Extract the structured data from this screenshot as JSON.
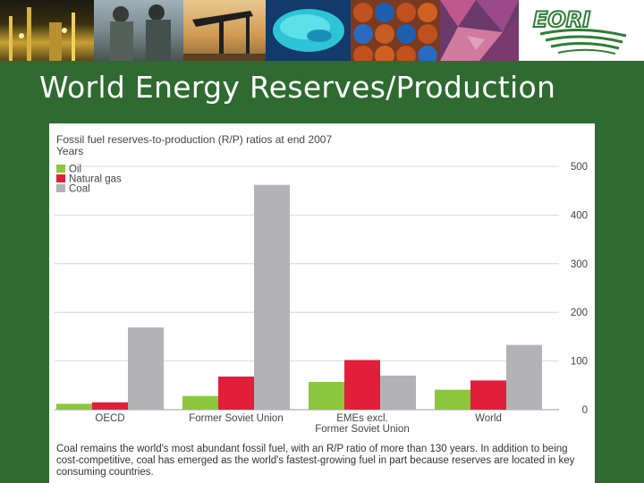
{
  "header": {
    "logo_alt": "EORI logo",
    "colors": {
      "slide_bg": "#2f6a31",
      "logo_green": "#2e7d34"
    }
  },
  "title": "World Energy Reserves/Production",
  "chart_data": {
    "type": "bar",
    "title": "Fossil fuel reserves-to-production (R/P) ratios at end 2007",
    "ylabel": "Years",
    "xlabel": "",
    "ylim": [
      0,
      500
    ],
    "yticks": [
      0,
      100,
      200,
      300,
      400,
      500
    ],
    "grid": true,
    "legend_position": "top-left",
    "categories": [
      "OECD",
      "Former Soviet Union",
      "EMEs excl.\nFormer Soviet Union",
      "World"
    ],
    "series": [
      {
        "name": "Oil",
        "color": "#8cc63f",
        "values": [
          12,
          28,
          57,
          41
        ]
      },
      {
        "name": "Natural gas",
        "color": "#e21f3a",
        "values": [
          15,
          68,
          102,
          60
        ]
      },
      {
        "name": "Coal",
        "color": "#b3b3b5",
        "values": [
          169,
          462,
          70,
          133
        ]
      }
    ]
  },
  "caption": "Coal remains the world's most abundant fossil fuel, with an R/P ratio of more than 130 years. In addition to being cost-competitive, coal has emerged as the world's fastest-growing fuel in part because reserves are located in key consuming countries."
}
